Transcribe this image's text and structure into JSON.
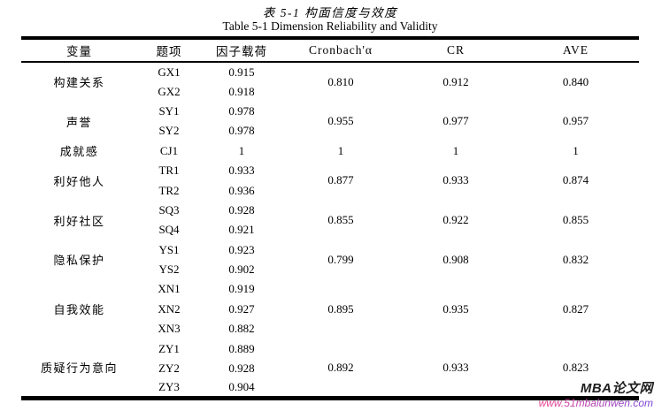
{
  "titles": {
    "zh": "表 5-1 构面信度与效度",
    "en": "Table 5-1 Dimension Reliability and Validity"
  },
  "table": {
    "headers": [
      "变量",
      "题项",
      "因子载荷",
      "Cronbach'α",
      "CR",
      "AVE"
    ],
    "groups": [
      {
        "variable": "构建关系",
        "cronbach": "0.810",
        "cr": "0.912",
        "ave": "0.840",
        "items": [
          {
            "code": "GX1",
            "loading": "0.915"
          },
          {
            "code": "GX2",
            "loading": "0.918"
          }
        ]
      },
      {
        "variable": "声誉",
        "cronbach": "0.955",
        "cr": "0.977",
        "ave": "0.957",
        "items": [
          {
            "code": "SY1",
            "loading": "0.978"
          },
          {
            "code": "SY2",
            "loading": "0.978"
          }
        ]
      },
      {
        "variable": "成就感",
        "cronbach": "1",
        "cr": "1",
        "ave": "1",
        "items": [
          {
            "code": "CJ1",
            "loading": "1"
          }
        ]
      },
      {
        "variable": "利好他人",
        "cronbach": "0.877",
        "cr": "0.933",
        "ave": "0.874",
        "items": [
          {
            "code": "TR1",
            "loading": "0.933"
          },
          {
            "code": "TR2",
            "loading": "0.936"
          }
        ]
      },
      {
        "variable": "利好社区",
        "cronbach": "0.855",
        "cr": "0.922",
        "ave": "0.855",
        "items": [
          {
            "code": "SQ3",
            "loading": "0.928"
          },
          {
            "code": "SQ4",
            "loading": "0.921"
          }
        ]
      },
      {
        "variable": "隐私保护",
        "cronbach": "0.799",
        "cr": "0.908",
        "ave": "0.832",
        "items": [
          {
            "code": "YS1",
            "loading": "0.923"
          },
          {
            "code": "YS2",
            "loading": "0.902"
          }
        ]
      },
      {
        "variable": "自我效能",
        "cronbach": "0.895",
        "cr": "0.935",
        "ave": "0.827",
        "items": [
          {
            "code": "XN1",
            "loading": "0.919"
          },
          {
            "code": "XN2",
            "loading": "0.927"
          },
          {
            "code": "XN3",
            "loading": "0.882"
          }
        ]
      },
      {
        "variable": "质疑行为意向",
        "cronbach": "0.892",
        "cr": "0.933",
        "ave": "0.823",
        "items": [
          {
            "code": "ZY1",
            "loading": "0.889"
          },
          {
            "code": "ZY2",
            "loading": "0.928"
          },
          {
            "code": "ZY3",
            "loading": "0.904"
          }
        ]
      }
    ]
  },
  "watermark": {
    "brand": "MBA论文网",
    "url": "www.51mbalunwen.com",
    "brand_color": "#1f1f1f",
    "url_gradient_start": "#f0418c",
    "url_gradient_end": "#7442d8"
  }
}
